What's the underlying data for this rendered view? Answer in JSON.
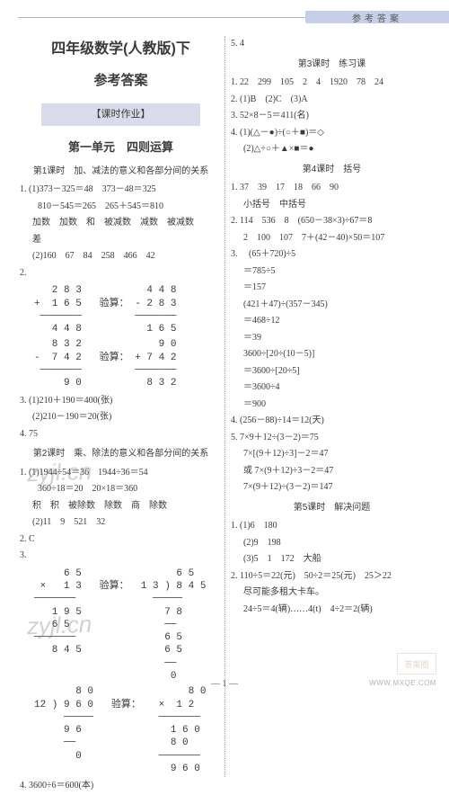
{
  "header": {
    "tab_label": "参考答案"
  },
  "title": {
    "main": "四年级数学(人教版)下",
    "sub": "参考答案"
  },
  "section_band": "【课时作业】",
  "unit": "第一单元　四则运算",
  "left": {
    "lesson1_title": "第1课时　加、减法的意义和各部分间的关系",
    "l1_1a": "1. (1)373－325＝48　373－48＝325",
    "l1_1b": "810－545＝265　265＋545＝810",
    "l1_1c": "加数　加数　和　被减数　减数　被减数",
    "l1_1d": "差",
    "l1_2": "(2)160　67　84　258　466　42",
    "arith1": "   2 8 3           4 4 8\n+  1 6 5   验算： - 2 8 3\n ───────         ───────\n   4 4 8           1 6 5",
    "arith2": "   8 3 2             9 0\n-  7 4 2   验算： + 7 4 2\n ───────         ───────\n     9 0           8 3 2",
    "l1_3a": "3. (1)210＋190＝400(张)",
    "l1_3b": "(2)210－190＝20(张)",
    "l1_4": "4. 75",
    "lesson2_title": "第2课时　乘、除法的意义和各部分间的关系",
    "l2_1a": "1. (1)1944÷54＝36　1944÷36＝54",
    "l2_1b": "360÷18＝20　20×18＝360",
    "l2_1c": "积　积　被除数　除数　商　除数",
    "l2_1d": "(2)11　9　521　32",
    "l2_2": "2. C",
    "arith3": "     6 5                6 5\n ×   1 3   验算：  1 3 ) 8 4 5\n───────             ─────\n   1 9 5              7 8\n   6 5                ──\n───────               6 5\n   8 4 5              6 5\n                      ──\n                       0",
    "arith4": "       8 0                8 0\n12 ) 9 6 0   验算：   ×  1 2\n     ─────           ───────\n     9 6               1 6 0\n     ──                8 0\n       0             ───────\n                       9 6 0",
    "l2_4": "4. 3600÷6＝600(本)"
  },
  "right": {
    "top": "5. 4",
    "lesson3_title": "第3课时　练习课",
    "l3_1": "1. 22　299　105　2　4　1920　78　24",
    "l3_2": "2. (1)B　(2)C　(3)A",
    "l3_3": "3. 52×8－5＝411(名)",
    "l3_4a": "4. (1)(△－●)÷(○＋■)＝◇",
    "l3_4b": "(2)△÷○＋▲×■＝●",
    "lesson4_title": "第4课时　括号",
    "l4_1a": "1. 37　39　17　18　66　90",
    "l4_1b": "小括号　中括号",
    "l4_2a": "2. 114　536　8　(650－38×3)÷67＝8",
    "l4_2b": "2　100　107　7＋(42－40)×50＝107",
    "l4_3a": "3. 　(65＋720)÷5",
    "l4_3b": "＝785÷5",
    "l4_3c": "＝157",
    "l4_3d": "(421＋47)÷(357－345)",
    "l4_3e": "＝468÷12",
    "l4_3f": "＝39",
    "l4_3g": "3600÷[20÷(10－5)]",
    "l4_3h": "＝3600÷[20÷5]",
    "l4_3i": "＝3600÷4",
    "l4_3j": "＝900",
    "l4_4": "4. (256－88)÷14＝12(天)",
    "l4_5a": "5. 7×9＋12÷(3－2)＝75",
    "l4_5b": "7×[(9＋12)÷3]－2＝47",
    "l4_5c": "或 7×(9＋12)÷3－2＝47",
    "l4_5d": "7×(9＋12)÷(3－2)＝147",
    "lesson5_title": "第5课时　解决问题",
    "l5_1a": "1. (1)6　180",
    "l5_1b": "(2)9　198",
    "l5_1c": "(3)5　1　172　大船",
    "l5_2a": "2. 110÷5＝22(元)　50÷2＝25(元)　25＞22",
    "l5_2b": "尽可能多租大卡车。",
    "l5_2c": "24÷5＝4(辆)……4(t)　4÷2＝2(辆)"
  },
  "watermarks": {
    "wm1": "zyjl.cn",
    "wm2": "zyjl.cn",
    "badge": "答案圈",
    "logo": "WWW.MXQE.COM"
  },
  "pagenum": "— 1 —"
}
